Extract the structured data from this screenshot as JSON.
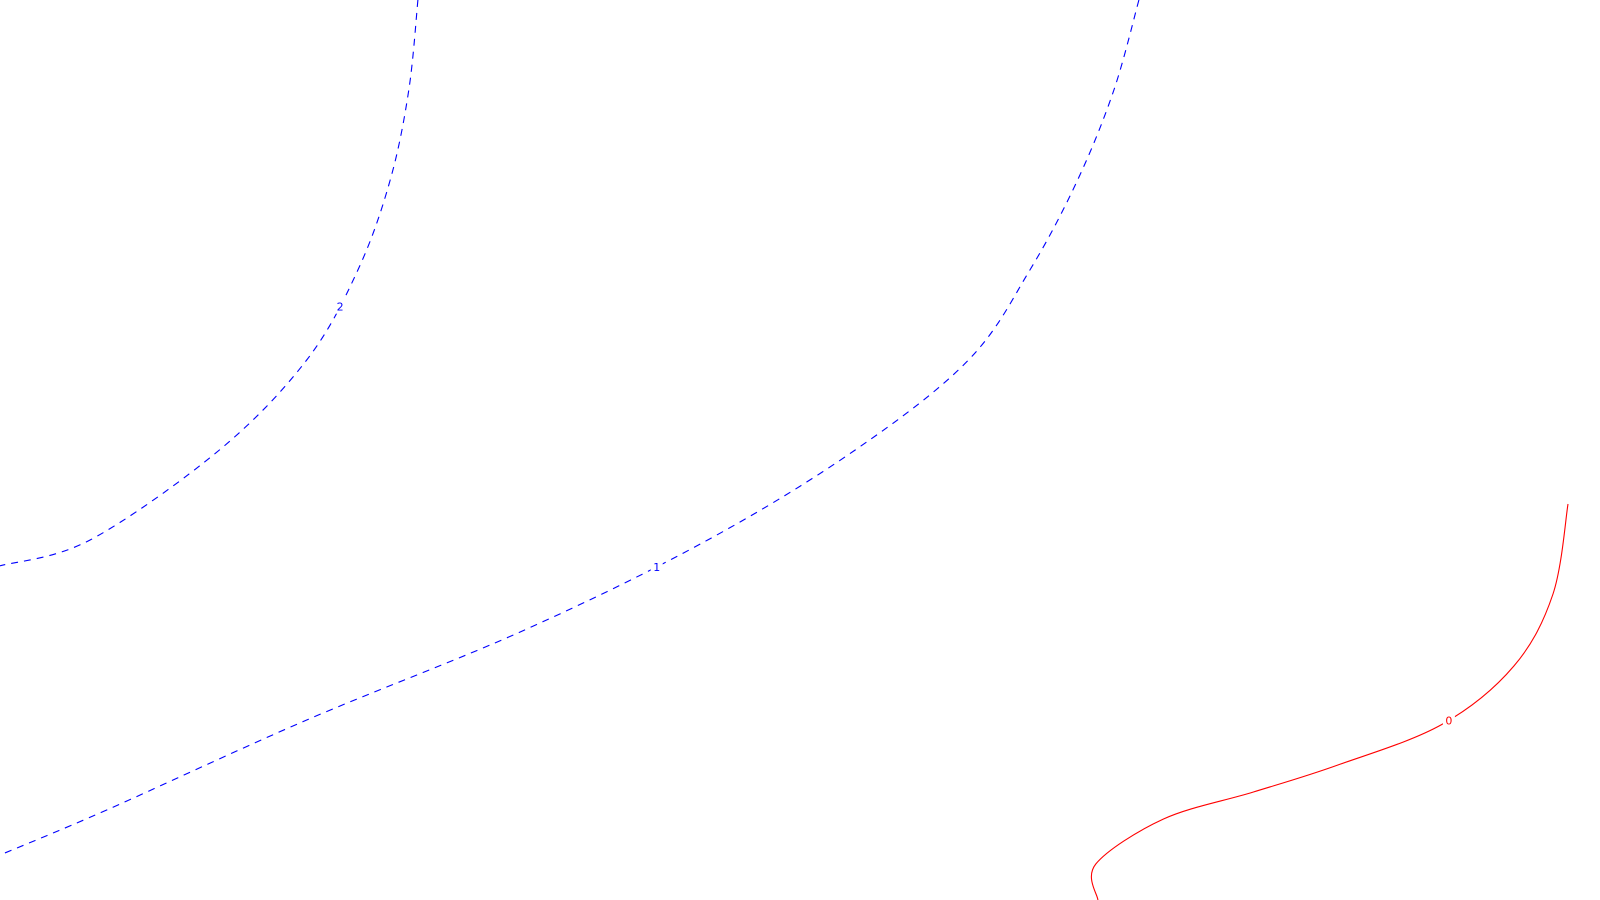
{
  "chart_data": {
    "type": "contour",
    "title": "",
    "xlabel": "",
    "ylabel": "",
    "grid": false,
    "axes_visible": false,
    "levels": [
      {
        "label": "2",
        "value": 2,
        "color": "#0000ff",
        "dashed": true,
        "points": [
          [
            0.2612,
            1.0
          ],
          [
            0.2555,
            0.9
          ],
          [
            0.2439,
            0.8
          ],
          [
            0.2237,
            0.7
          ],
          [
            0.1917,
            0.6
          ],
          [
            0.1371,
            0.5
          ],
          [
            0.0563,
            0.4
          ],
          [
            0.0,
            0.3713
          ]
        ]
      },
      {
        "label": "1",
        "value": 1,
        "color": "#0000ff",
        "dashed": true,
        "points": [
          [
            0.7118,
            1.0
          ],
          [
            0.6962,
            0.9
          ],
          [
            0.6735,
            0.8
          ],
          [
            0.6437,
            0.7
          ],
          [
            0.6053,
            0.6
          ],
          [
            0.5345,
            0.5
          ],
          [
            0.4423,
            0.4
          ],
          [
            0.3279,
            0.3
          ],
          [
            0.1917,
            0.2
          ],
          [
            0.0667,
            0.1
          ],
          [
            0.0,
            0.05
          ]
        ]
      },
      {
        "label": "0",
        "value": 0,
        "color": "#ff0000",
        "dashed": false,
        "points": [
          [
            0.98,
            0.44
          ],
          [
            0.9706,
            0.34
          ],
          [
            0.9462,
            0.26
          ],
          [
            0.9011,
            0.195
          ],
          [
            0.8362,
            0.15
          ],
          [
            0.7834,
            0.12
          ],
          [
            0.7272,
            0.09
          ],
          [
            0.6849,
            0.04
          ],
          [
            0.6862,
            0.0
          ]
        ]
      }
    ],
    "xlim": [
      0,
      1
    ],
    "ylim": [
      0,
      1
    ]
  }
}
